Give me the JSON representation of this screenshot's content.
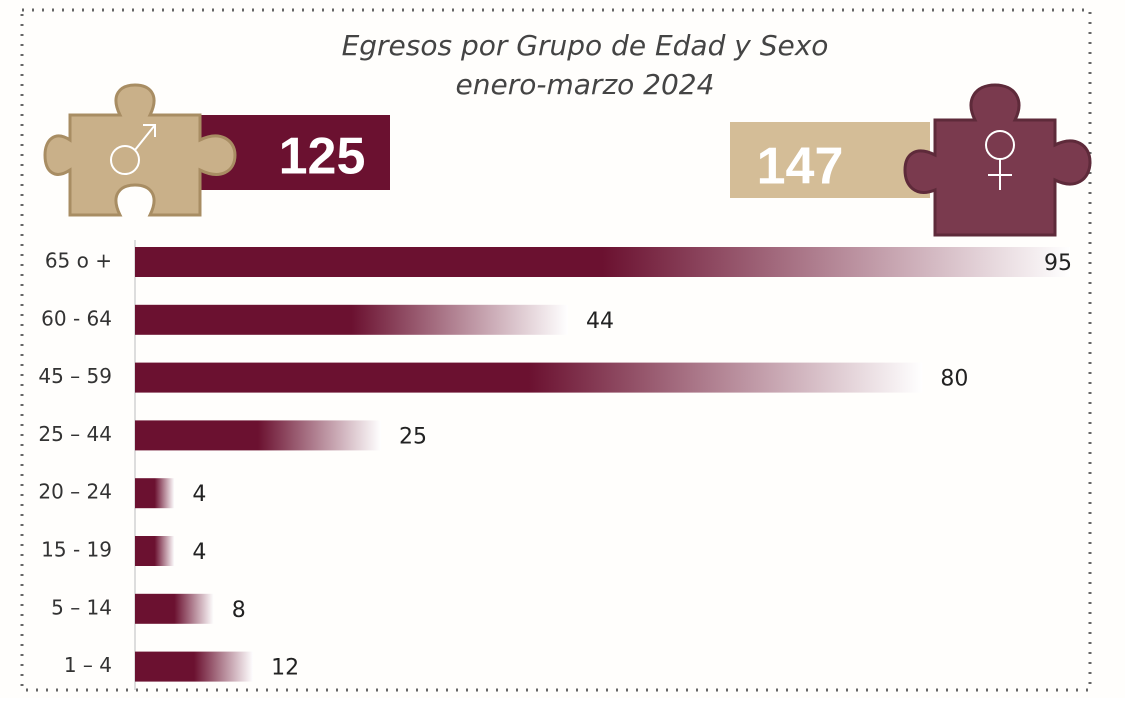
{
  "chart_data": {
    "type": "bar",
    "orientation": "horizontal",
    "title": "Egresos por Grupo de Edad y Sexo",
    "subtitle": "enero-marzo 2024",
    "male_total": 125,
    "female_total": 147,
    "categories": [
      "65 o +",
      "60 - 64",
      "45 – 59",
      "25 – 44",
      "20 – 24",
      "15 - 19",
      "5 – 14",
      "1 – 4"
    ],
    "values": [
      95,
      44,
      80,
      25,
      4,
      4,
      8,
      12
    ],
    "color": "#6b1130"
  }
}
